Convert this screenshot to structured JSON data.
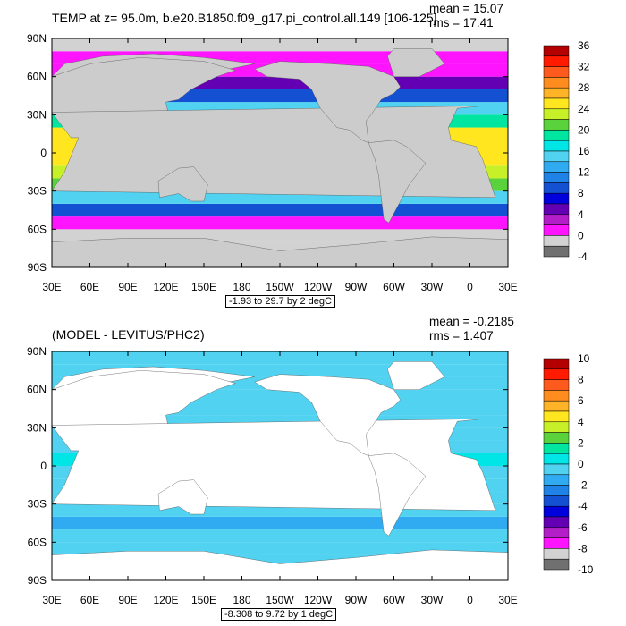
{
  "chart_data": [
    {
      "type": "heatmap",
      "title": "TEMP at z=  95.0m, b.e20.B1850.f09_g17.pi_control.all.149 [106-125]",
      "stats": {
        "mean": "mean = 15.07",
        "rms": "rms = 17.41"
      },
      "range_label": "-1.93 to 29.7 by 2 degC",
      "x_ticks": [
        "30E",
        "60E",
        "90E",
        "120E",
        "150E",
        "180",
        "150W",
        "120W",
        "90W",
        "60W",
        "30W",
        "0",
        "30E"
      ],
      "y_ticks": [
        "90N",
        "60N",
        "30N",
        "0",
        "30S",
        "60S",
        "90S"
      ],
      "colorbar_labels": [
        "36",
        "32",
        "28",
        "24",
        "20",
        "16",
        "12",
        "8",
        "4",
        "0",
        "-4"
      ],
      "colorbar_colors": [
        "#b40000",
        "#ff1a00",
        "#ff5a1e",
        "#ff8c1e",
        "#ffb428",
        "#ffe61e",
        "#c8f028",
        "#5ad23c",
        "#00e6a0",
        "#00e6e6",
        "#50d2f0",
        "#30aaf0",
        "#1e82e6",
        "#1450d2",
        "#0000dc",
        "#6400b4",
        "#b41ec8",
        "#ff14ff",
        "#d2d2d2",
        "#707070"
      ],
      "zonal_profile": {
        "lat": [
          -75,
          -65,
          -55,
          -45,
          -35,
          -25,
          -15,
          -5,
          5,
          15,
          25,
          35,
          45,
          55,
          65,
          75,
          85
        ],
        "temp_degC": [
          -1.5,
          -1,
          1,
          8,
          15,
          21,
          24,
          25,
          26,
          25,
          20,
          14,
          8,
          4,
          1,
          -0.5,
          -1.5
        ]
      },
      "land_color": "#cccccc"
    },
    {
      "type": "heatmap",
      "title": "(MODEL - LEVITUS/PHC2)",
      "stats": {
        "mean": "mean = -0.2185",
        "rms": "rms = 1.407"
      },
      "range_label": "-8.308 to 9.72 by 1 degC",
      "x_ticks": [
        "30E",
        "60E",
        "90E",
        "120E",
        "150E",
        "180",
        "150W",
        "120W",
        "90W",
        "60W",
        "30W",
        "0",
        "30E"
      ],
      "y_ticks": [
        "90N",
        "60N",
        "30N",
        "0",
        "30S",
        "60S",
        "90S"
      ],
      "colorbar_labels": [
        "10",
        "8",
        "6",
        "4",
        "2",
        "0",
        "-2",
        "-4",
        "-6",
        "-8",
        "-10"
      ],
      "colorbar_colors": [
        "#b40000",
        "#ff1a00",
        "#ff5a1e",
        "#ff8c1e",
        "#ffb428",
        "#ffe61e",
        "#c8f028",
        "#5ad23c",
        "#00e6a0",
        "#00e6e6",
        "#50d2f0",
        "#30aaf0",
        "#1e82e6",
        "#1450d2",
        "#0000dc",
        "#6400b4",
        "#b41ec8",
        "#ff14ff",
        "#d2d2d2",
        "#707070"
      ],
      "zonal_profile": {
        "lat": [
          -75,
          -65,
          -55,
          -45,
          -35,
          -25,
          -15,
          -5,
          5,
          15,
          25,
          35,
          45,
          55,
          65,
          75,
          85
        ],
        "temp_degC": [
          0,
          0,
          -1,
          -1.5,
          -1,
          -0.5,
          -0.5,
          0,
          1,
          0,
          -0.5,
          -1,
          -1,
          0,
          0,
          0,
          0
        ]
      },
      "land_color": "#ffffff"
    }
  ]
}
